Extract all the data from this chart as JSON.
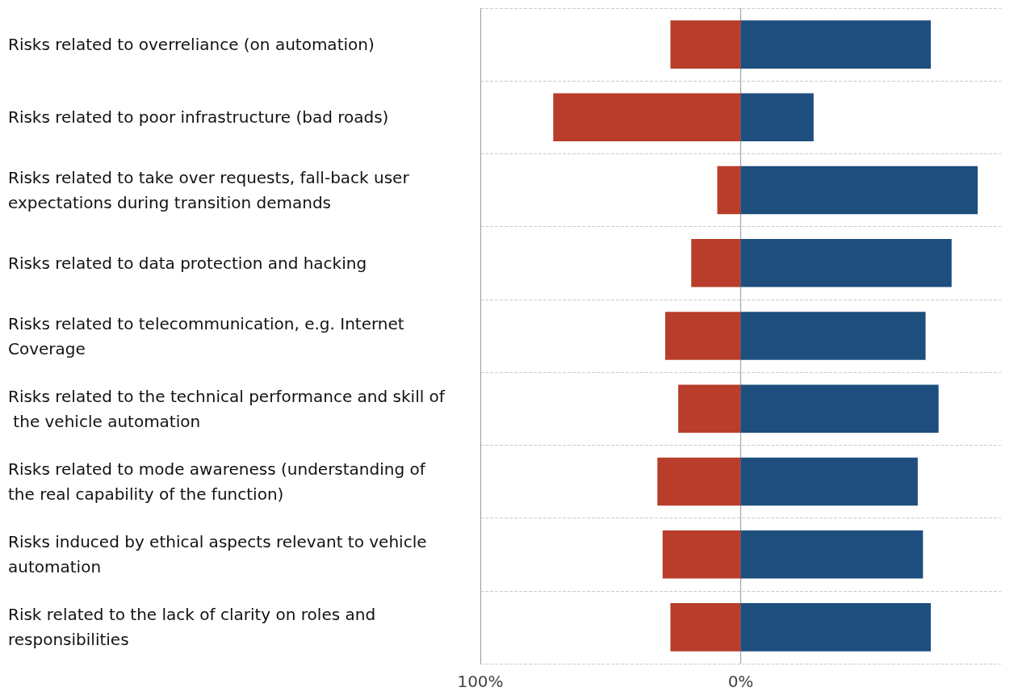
{
  "chart_data": {
    "type": "bar",
    "orientation": "horizontal",
    "stacked": true,
    "categories": [
      "Risks related to overreliance (on automation)",
      "Risks related to poor infrastructure (bad roads)",
      "Risks related to take over requests, fall-back user expectations during transition demands",
      "Risks related to data protection and hacking",
      "Risks related to telecommunication, e.g. Internet Coverage",
      "Risks related to the technical performance and skill of the vehicle automation",
      "Risks related to mode awareness (understanding of the real capability of the function)",
      "Risks induced by ethical aspects relevant to vehicle automation",
      "Risk related to the lack of clarity on roles and responsibilities"
    ],
    "series": [
      {
        "color": "#b83d2a",
        "values": [
          -27,
          -72,
          -9,
          -19,
          -29,
          -24,
          -32,
          -30,
          -27
        ]
      },
      {
        "color": "#1d4e7e",
        "values": [
          73,
          28,
          91,
          81,
          71,
          76,
          68,
          70,
          73
        ]
      }
    ],
    "xlim": [
      -100,
      100
    ],
    "xticks": [
      {
        "value": -100,
        "label": "100%"
      },
      {
        "value": 0,
        "label": "0%"
      }
    ],
    "grid": true
  }
}
